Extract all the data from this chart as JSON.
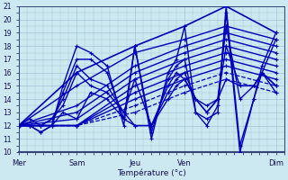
{
  "xlabel": "Température (°c)",
  "ylim": [
    10,
    21
  ],
  "xlim": [
    0,
    96
  ],
  "yticks": [
    10,
    11,
    12,
    13,
    14,
    15,
    16,
    17,
    18,
    19,
    20,
    21
  ],
  "xtick_labels": [
    "Mer",
    "Sam",
    "Jeu",
    "Ven",
    "Dim"
  ],
  "xtick_positions": [
    0,
    21,
    42,
    60,
    93
  ],
  "bg_color": "#cce8f0",
  "line_color": "#0000bb",
  "grid_color": "#99bbcc",
  "lines": [
    {
      "x": [
        0,
        21,
        42,
        60,
        75,
        93
      ],
      "y": [
        12,
        16,
        18,
        19.5,
        21,
        19
      ],
      "ls": "-",
      "lw": 1.2
    },
    {
      "x": [
        0,
        21,
        42,
        60,
        75,
        93
      ],
      "y": [
        12,
        15,
        17.5,
        18.5,
        19.5,
        18.5
      ],
      "ls": "-",
      "lw": 1.0
    },
    {
      "x": [
        0,
        21,
        42,
        60,
        75,
        93
      ],
      "y": [
        12,
        13.5,
        16.5,
        18,
        19,
        18
      ],
      "ls": "-",
      "lw": 1.0
    },
    {
      "x": [
        0,
        21,
        42,
        60,
        75,
        93
      ],
      "y": [
        12,
        13,
        16,
        17.5,
        18.5,
        17.5
      ],
      "ls": "-",
      "lw": 1.0
    },
    {
      "x": [
        0,
        21,
        42,
        60,
        75,
        93
      ],
      "y": [
        12,
        12.5,
        15.5,
        17,
        18,
        17
      ],
      "ls": "-",
      "lw": 1.0
    },
    {
      "x": [
        0,
        21,
        42,
        60,
        75,
        93
      ],
      "y": [
        12,
        12,
        15,
        16.5,
        17.5,
        16.5
      ],
      "ls": "-",
      "lw": 1.0
    },
    {
      "x": [
        0,
        21,
        42,
        60,
        75,
        93
      ],
      "y": [
        12,
        12,
        14.5,
        16,
        17,
        16
      ],
      "ls": "-",
      "lw": 1.0
    },
    {
      "x": [
        0,
        21,
        42,
        60,
        75,
        93
      ],
      "y": [
        12,
        12,
        14,
        15.5,
        16.5,
        15.5
      ],
      "ls": "-",
      "lw": 1.0
    },
    {
      "x": [
        0,
        21,
        42,
        60,
        75,
        93
      ],
      "y": [
        12,
        12,
        13.5,
        15,
        16,
        15
      ],
      "ls": "--",
      "lw": 0.9
    },
    {
      "x": [
        0,
        21,
        42,
        60,
        75,
        93
      ],
      "y": [
        12,
        12,
        13,
        14.5,
        15.5,
        14.5
      ],
      "ls": "--",
      "lw": 0.9
    },
    {
      "x": [
        0,
        4,
        8,
        12,
        16,
        21,
        26,
        32,
        38,
        42,
        48,
        54,
        57,
        60,
        64,
        68,
        72,
        75,
        80,
        85,
        88,
        93
      ],
      "y": [
        12,
        12,
        11.5,
        12,
        15,
        18,
        17.5,
        16.5,
        12,
        18,
        11,
        16,
        17,
        19.5,
        13,
        12.5,
        13,
        21,
        10.5,
        14,
        16.5,
        19
      ],
      "ls": "-",
      "lw": 1.0
    },
    {
      "x": [
        0,
        4,
        8,
        12,
        16,
        21,
        26,
        32,
        38,
        42,
        48,
        54,
        57,
        60,
        64,
        68,
        72,
        75,
        80,
        85,
        88,
        93
      ],
      "y": [
        12,
        12,
        11.5,
        12,
        14.5,
        17,
        17,
        16,
        12.5,
        18,
        11.5,
        15.5,
        16.5,
        17,
        13,
        12,
        13.5,
        20.5,
        10,
        14,
        16,
        18.5
      ],
      "ls": "-",
      "lw": 1.0
    },
    {
      "x": [
        0,
        4,
        8,
        12,
        16,
        21,
        26,
        32,
        38,
        42,
        48,
        54,
        57,
        60,
        64,
        68,
        72,
        75,
        80,
        85,
        88,
        93
      ],
      "y": [
        12,
        12.5,
        12,
        12.5,
        14,
        16.5,
        15.5,
        15,
        13,
        15.5,
        12,
        15,
        16,
        15.5,
        14,
        13.5,
        14,
        19.5,
        14,
        15,
        16,
        15
      ],
      "ls": "-",
      "lw": 1.0
    },
    {
      "x": [
        0,
        4,
        8,
        12,
        16,
        21,
        26,
        32,
        38,
        42,
        48,
        54,
        57,
        60,
        64,
        68,
        72,
        75,
        80,
        85,
        88,
        93
      ],
      "y": [
        12,
        12,
        12,
        12.5,
        13.5,
        16,
        15,
        14.5,
        13,
        12,
        12,
        14.5,
        15.5,
        16,
        14,
        13,
        14,
        18,
        15,
        15,
        16,
        14.5
      ],
      "ls": "-",
      "lw": 1.0
    },
    {
      "x": [
        0,
        4,
        8,
        12,
        16,
        21,
        26,
        32,
        38,
        42,
        48,
        54,
        57,
        60,
        64,
        68,
        72,
        75,
        80,
        85,
        88,
        93
      ],
      "y": [
        12,
        12,
        12,
        12,
        13,
        12.5,
        14.5,
        14,
        12.5,
        12,
        12,
        14,
        15,
        15.5,
        14,
        13,
        14,
        15.5,
        15,
        15,
        16,
        15
      ],
      "ls": "-",
      "lw": 1.0
    }
  ]
}
